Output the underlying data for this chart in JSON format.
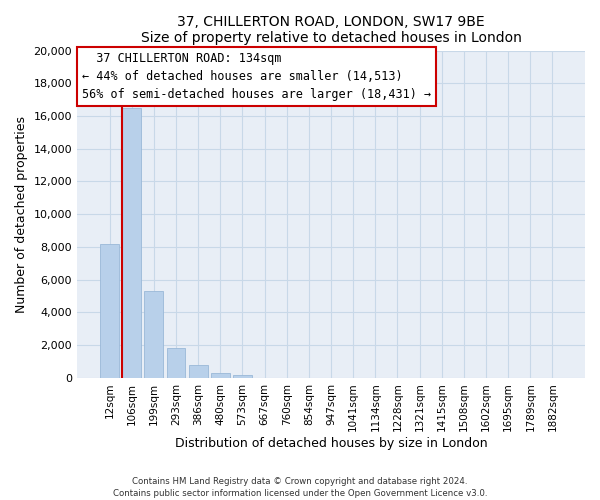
{
  "title": "37, CHILLERTON ROAD, LONDON, SW17 9BE",
  "subtitle": "Size of property relative to detached houses in London",
  "xlabel": "Distribution of detached houses by size in London",
  "ylabel": "Number of detached properties",
  "bar_labels": [
    "12sqm",
    "106sqm",
    "199sqm",
    "293sqm",
    "386sqm",
    "480sqm",
    "573sqm",
    "667sqm",
    "760sqm",
    "854sqm",
    "947sqm",
    "1041sqm",
    "1134sqm",
    "1228sqm",
    "1321sqm",
    "1415sqm",
    "1508sqm",
    "1602sqm",
    "1695sqm",
    "1789sqm",
    "1882sqm"
  ],
  "bar_heights": [
    8200,
    16500,
    5300,
    1800,
    800,
    300,
    200,
    0,
    0,
    0,
    0,
    0,
    0,
    0,
    0,
    0,
    0,
    0,
    0,
    0,
    0
  ],
  "bar_color": "#b8d0ea",
  "bar_edge_color": "#9ab8d8",
  "vline_color": "#cc0000",
  "ylim": [
    0,
    20000
  ],
  "yticks": [
    0,
    2000,
    4000,
    6000,
    8000,
    10000,
    12000,
    14000,
    16000,
    18000,
    20000
  ],
  "annotation_title": "37 CHILLERTON ROAD: 134sqm",
  "annotation_line1": "← 44% of detached houses are smaller (14,513)",
  "annotation_line2": "56% of semi-detached houses are larger (18,431) →",
  "annotation_box_color": "white",
  "annotation_box_edge": "#cc0000",
  "grid_color": "#c8d8e8",
  "background_color": "#e8eef6",
  "footer_line1": "Contains HM Land Registry data © Crown copyright and database right 2024.",
  "footer_line2": "Contains public sector information licensed under the Open Government Licence v3.0."
}
